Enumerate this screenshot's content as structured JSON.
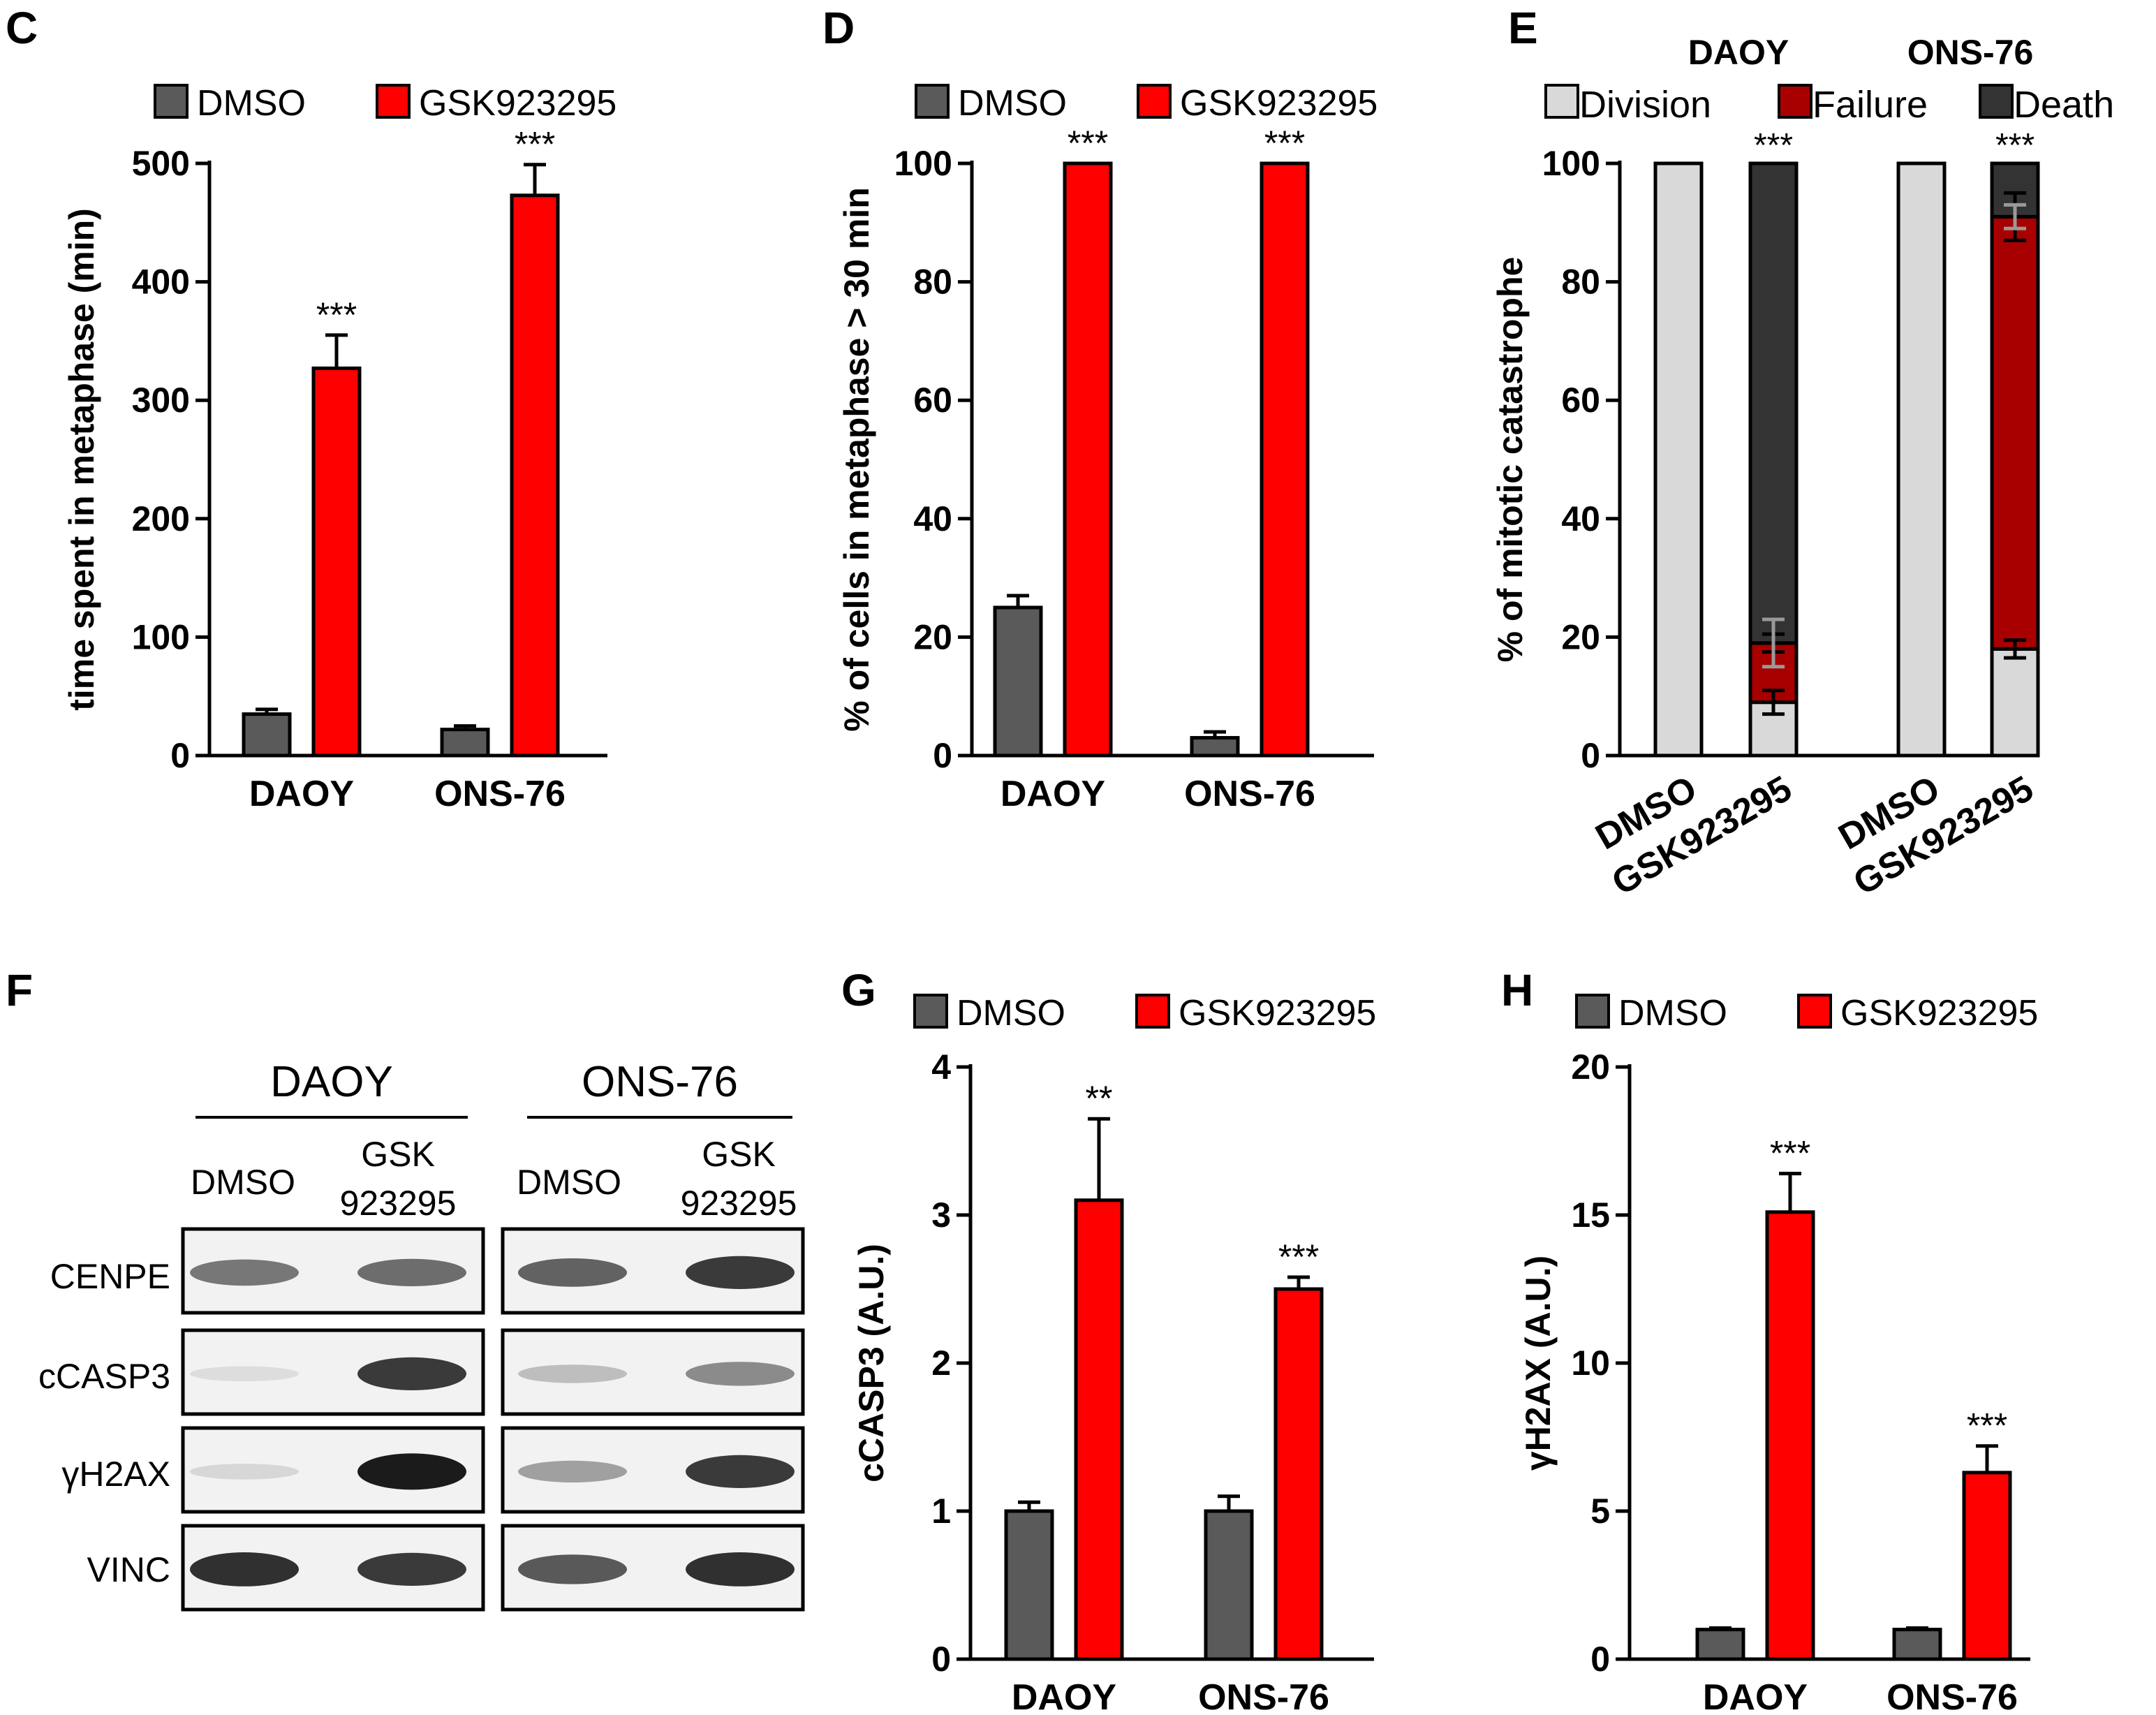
{
  "colors": {
    "dmso": "#5a5a5a",
    "gsk": "#ff0000",
    "division": "#d9d9d9",
    "failure": "#a80000",
    "death": "#333333",
    "axis": "#000000"
  },
  "panels": {
    "C": {
      "letter": "C",
      "legend": [
        "DMSO",
        "GSK923295"
      ]
    },
    "D": {
      "letter": "D",
      "legend": [
        "DMSO",
        "GSK923295"
      ]
    },
    "E": {
      "letter": "E",
      "group_labels": [
        "DAOY",
        "ONS-76"
      ],
      "legend": [
        "Division",
        "Failure",
        "Death"
      ]
    },
    "F": {
      "letter": "F",
      "cell_lines": [
        "DAOY",
        "ONS-76"
      ],
      "lanes": [
        {
          "line1": "DMSO",
          "line2": ""
        },
        {
          "line1": "GSK",
          "line2": "923295"
        },
        {
          "line1": "DMSO",
          "line2": ""
        },
        {
          "line1": "GSK",
          "line2": "923295"
        }
      ],
      "rows": [
        "CENPE",
        "cCASP3",
        "γH2AX",
        "VINC"
      ],
      "band_intensity": [
        [
          0.55,
          0.6,
          0.65,
          0.85
        ],
        [
          0.05,
          0.85,
          0.2,
          0.45
        ],
        [
          0.08,
          1.0,
          0.35,
          0.85
        ],
        [
          0.9,
          0.85,
          0.7,
          0.9
        ]
      ]
    },
    "G": {
      "letter": "G",
      "legend": [
        "DMSO",
        "GSK923295"
      ]
    },
    "H": {
      "letter": "H",
      "legend": [
        "DMSO",
        "GSK923295"
      ]
    }
  },
  "chart_data": [
    {
      "panel": "C",
      "type": "bar",
      "categories": [
        "DAOY",
        "ONS-76"
      ],
      "series": [
        {
          "name": "DMSO",
          "values": [
            35,
            22
          ],
          "errors": [
            4,
            3
          ]
        },
        {
          "name": "GSK923295",
          "values": [
            327,
            473
          ],
          "errors": [
            28,
            26
          ]
        }
      ],
      "significance": [
        [
          "",
          ""
        ],
        [
          "***",
          "***"
        ]
      ],
      "ylabel": "time spent in metaphase (min)",
      "ylim": [
        0,
        500
      ],
      "yticks": [
        0,
        100,
        200,
        300,
        400,
        500
      ]
    },
    {
      "panel": "D",
      "type": "bar",
      "categories": [
        "DAOY",
        "ONS-76"
      ],
      "series": [
        {
          "name": "DMSO",
          "values": [
            25,
            3
          ],
          "errors": [
            2,
            1
          ]
        },
        {
          "name": "GSK923295",
          "values": [
            100,
            100
          ],
          "errors": [
            0,
            0
          ]
        }
      ],
      "significance": [
        [
          "",
          ""
        ],
        [
          "***",
          "***"
        ]
      ],
      "ylabel": "% of cells in metaphase > 30 min",
      "ylim": [
        0,
        100
      ],
      "yticks": [
        0,
        20,
        40,
        60,
        80,
        100
      ]
    },
    {
      "panel": "E",
      "type": "bar",
      "stacked": true,
      "categories": [
        "DMSO",
        "GSK923295",
        "DMSO",
        "GSK923295"
      ],
      "groups": [
        "DAOY",
        "ONS-76"
      ],
      "series": [
        {
          "name": "Division",
          "values": [
            100,
            9,
            100,
            18
          ],
          "errors": [
            0,
            2,
            0,
            1.5
          ]
        },
        {
          "name": "Failure",
          "values": [
            0,
            10,
            0,
            73
          ],
          "errors": [
            0,
            1.5,
            0,
            4
          ]
        },
        {
          "name": "Death",
          "values": [
            0,
            81,
            0,
            9
          ],
          "errors": [
            0,
            4,
            0,
            2
          ]
        }
      ],
      "significance": [
        "",
        "***",
        "",
        "***"
      ],
      "ylabel": "% of mitotic catastrophe",
      "ylim": [
        0,
        100
      ],
      "yticks": [
        0,
        20,
        40,
        60,
        80,
        100
      ]
    },
    {
      "panel": "G",
      "type": "bar",
      "categories": [
        "DAOY",
        "ONS-76"
      ],
      "series": [
        {
          "name": "DMSO",
          "values": [
            1.0,
            1.0
          ],
          "errors": [
            0.06,
            0.1
          ]
        },
        {
          "name": "GSK923295",
          "values": [
            3.1,
            2.5
          ],
          "errors": [
            0.55,
            0.08
          ]
        }
      ],
      "significance": [
        [
          "",
          ""
        ],
        [
          "**",
          "***"
        ]
      ],
      "ylabel": "cCASP3 (A.U.)",
      "ylim": [
        0,
        4
      ],
      "yticks": [
        0,
        1,
        2,
        3,
        4
      ]
    },
    {
      "panel": "H",
      "type": "bar",
      "categories": [
        "DAOY",
        "ONS-76"
      ],
      "series": [
        {
          "name": "DMSO",
          "values": [
            1.0,
            1.0
          ],
          "errors": [
            0.05,
            0.05
          ]
        },
        {
          "name": "GSK923295",
          "values": [
            15.1,
            6.3
          ],
          "errors": [
            1.3,
            0.9
          ]
        }
      ],
      "significance": [
        [
          "",
          ""
        ],
        [
          "***",
          "***"
        ]
      ],
      "ylabel": "γH2AX (A.U.)",
      "ylim": [
        0,
        20
      ],
      "yticks": [
        0,
        5,
        10,
        15,
        20
      ]
    }
  ]
}
